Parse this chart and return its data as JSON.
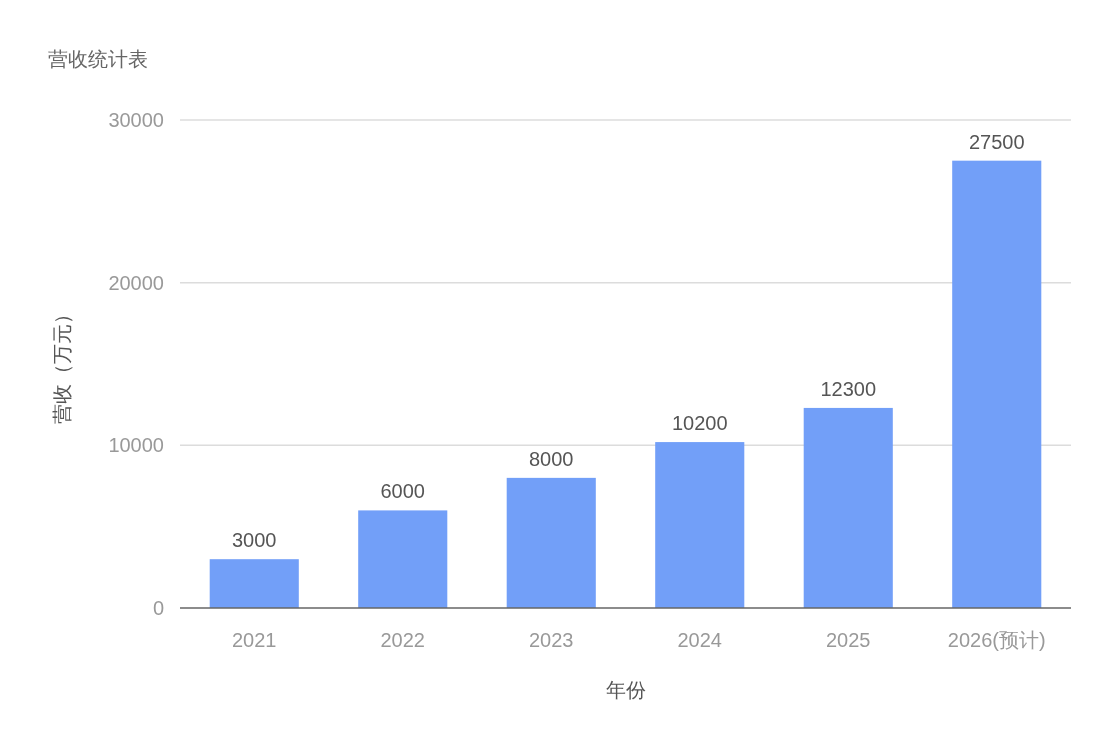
{
  "chart_data": {
    "type": "bar",
    "title": "营收统计表",
    "xlabel": "年份",
    "ylabel": "营收（万元）",
    "categories": [
      "2021",
      "2022",
      "2023",
      "2024",
      "2025",
      "2026(预计)"
    ],
    "values": [
      3000,
      6000,
      8000,
      10200,
      12300,
      27500
    ],
    "color": "#729ff8",
    "ylim": [
      0,
      30000
    ],
    "yticks": [
      0,
      10000,
      20000,
      30000
    ],
    "grid": "y",
    "data_labels": true
  }
}
